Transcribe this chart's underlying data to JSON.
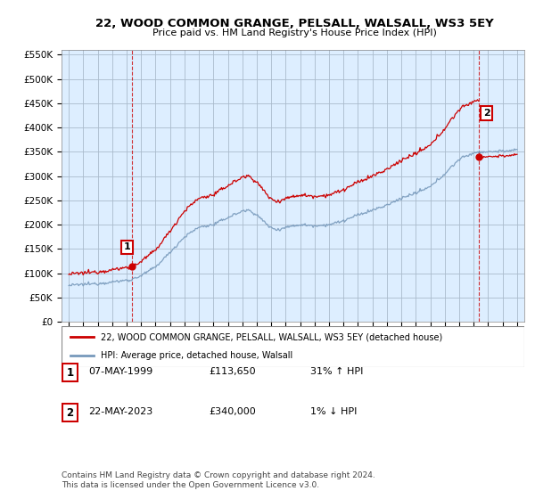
{
  "title": "22, WOOD COMMON GRANGE, PELSALL, WALSALL, WS3 5EY",
  "subtitle": "Price paid vs. HM Land Registry's House Price Index (HPI)",
  "ylim": [
    0,
    560000
  ],
  "yticks": [
    0,
    50000,
    100000,
    150000,
    200000,
    250000,
    300000,
    350000,
    400000,
    450000,
    500000,
    550000
  ],
  "ytick_labels": [
    "£0",
    "£50K",
    "£100K",
    "£150K",
    "£200K",
    "£250K",
    "£300K",
    "£350K",
    "£400K",
    "£450K",
    "£500K",
    "£550K"
  ],
  "background_color": "#ffffff",
  "chart_bg_color": "#ddeeff",
  "grid_color": "#aabbcc",
  "red_line_color": "#cc0000",
  "blue_line_color": "#7799bb",
  "point1_date": "07-MAY-1999",
  "point1_price": 113650,
  "point1_hpi_text": "31% ↑ HPI",
  "point2_date": "22-MAY-2023",
  "point2_price": 340000,
  "point2_hpi_text": "1% ↓ HPI",
  "legend_line1": "22, WOOD COMMON GRANGE, PELSALL, WALSALL, WS3 5EY (detached house)",
  "legend_line2": "HPI: Average price, detached house, Walsall",
  "footnote": "Contains HM Land Registry data © Crown copyright and database right 2024.\nThis data is licensed under the Open Government Licence v3.0.",
  "sale1_year": 1999.35,
  "sale2_year": 2023.38
}
